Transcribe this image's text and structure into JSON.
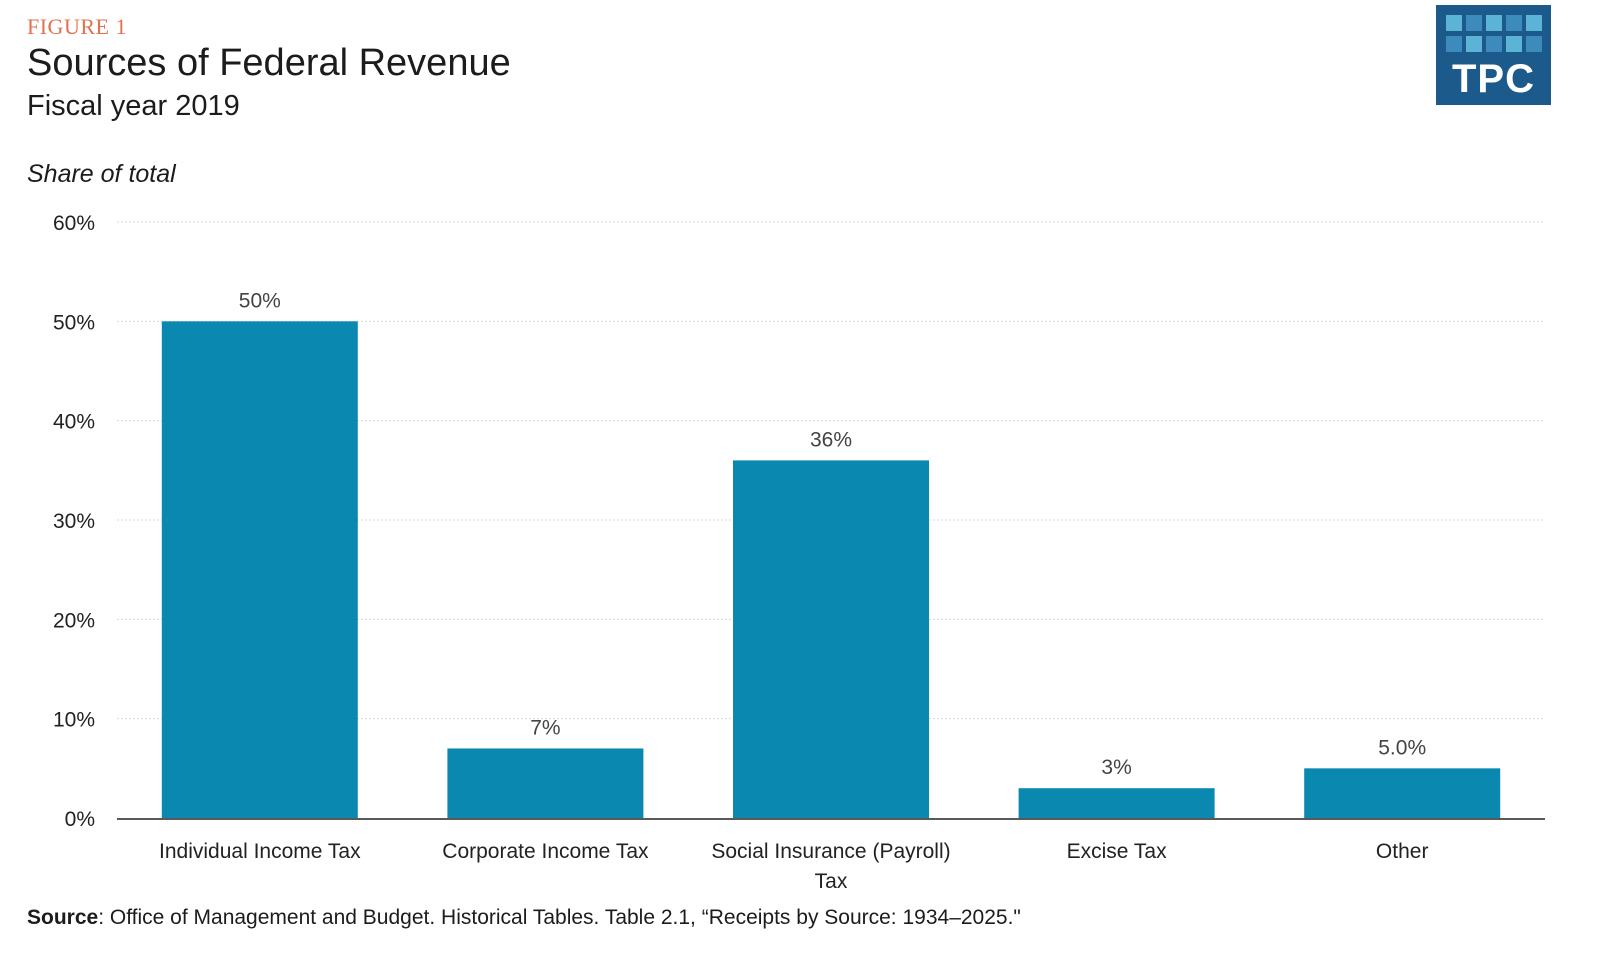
{
  "header": {
    "figure_label": "FIGURE 1",
    "title": "Sources of Federal Revenue",
    "subtitle": "Fiscal year 2019"
  },
  "logo": {
    "text": "TPC",
    "background_color": "#1d5a8c",
    "accent_color": "#5bb3d6"
  },
  "chart_data": {
    "type": "bar",
    "title": "Sources of Federal Revenue",
    "subtitle": "Fiscal year 2019",
    "ylabel": "Share of total",
    "xlabel": "",
    "ylim": [
      0,
      60
    ],
    "yticks": [
      0,
      10,
      20,
      30,
      40,
      50,
      60
    ],
    "ytick_labels": [
      "0%",
      "10%",
      "20%",
      "30%",
      "40%",
      "50%",
      "60%"
    ],
    "grid": true,
    "categories": [
      [
        "Individual Income Tax"
      ],
      [
        "Corporate Income Tax"
      ],
      [
        "Social Insurance (Payroll)",
        "Tax"
      ],
      [
        "Excise Tax"
      ],
      [
        "Other"
      ]
    ],
    "values": [
      50,
      7,
      36,
      3,
      5.0
    ],
    "value_labels": [
      "50%",
      "7%",
      "36%",
      "3%",
      "5.0%"
    ],
    "bar_color": "#0a88b0"
  },
  "source": {
    "label": "Source",
    "text": ": Office of Management and Budget. Historical Tables. Table 2.1, “Receipts by Source: 1934–2025.\""
  }
}
